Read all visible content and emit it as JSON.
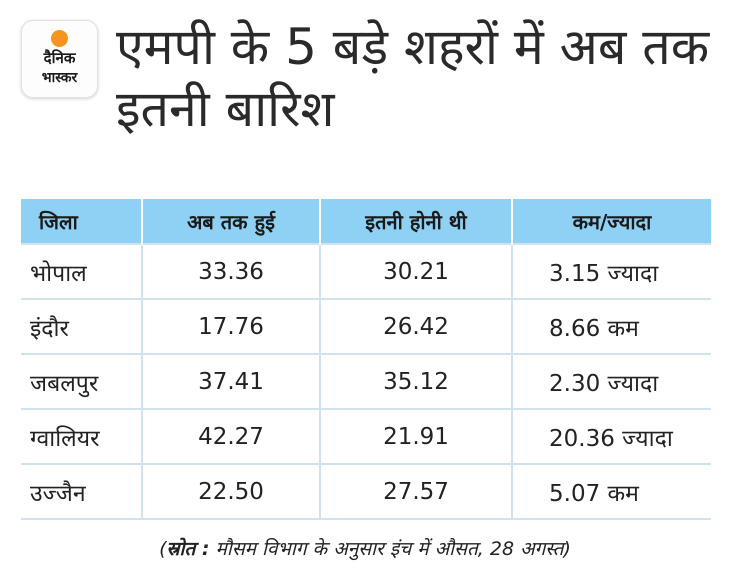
{
  "logo": {
    "line1": "दैनिक",
    "line2": "भास्कर"
  },
  "title": "एमपी के 5 बड़े शहरों में अब तक इतनी बारिश",
  "table": {
    "headers": [
      "जिला",
      "अब तक हुई",
      "इतनी होनी थी",
      "कम/ज्यादा"
    ],
    "rows": [
      {
        "city": "भोपाल",
        "actual": "33.36",
        "expected": "30.21",
        "diff": "3.15 ज्यादा"
      },
      {
        "city": "इंदौर",
        "actual": "17.76",
        "expected": "26.42",
        "diff": "8.66 कम"
      },
      {
        "city": "जबलपुर",
        "actual": "37.41",
        "expected": "35.12",
        "diff": "2.30 ज्यादा"
      },
      {
        "city": "ग्वालियर",
        "actual": "42.27",
        "expected": "21.91",
        "diff": "20.36 ज्यादा"
      },
      {
        "city": "उज्जैन",
        "actual": "22.50",
        "expected": "27.57",
        "diff": "5.07 कम"
      }
    ]
  },
  "source": {
    "label": "स्रोत :",
    "text": "मौसम विभाग के अनुसार इंच में औसत, 28 अगस्त"
  },
  "colors": {
    "header_bg": "#8fd1f4",
    "logo_sun": "#f7941d",
    "grid": "#cfe3ef"
  }
}
